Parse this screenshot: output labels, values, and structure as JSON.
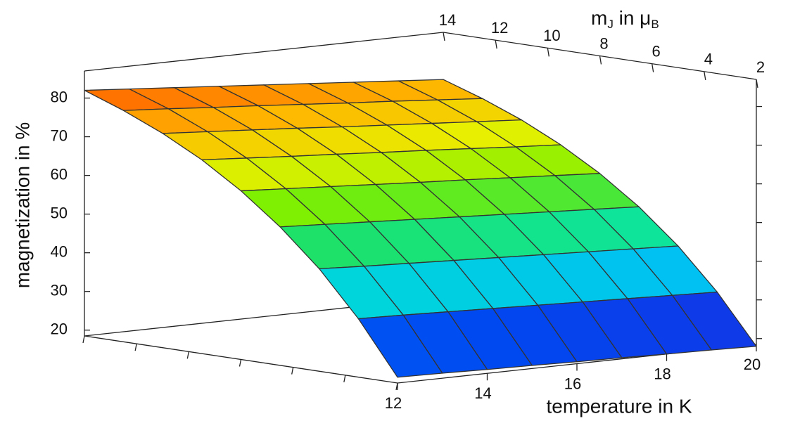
{
  "chart_data": {
    "type": "surface",
    "x_label": "temperature in K",
    "z_label": "magnetization in %",
    "y_label_parts": [
      "m",
      "J",
      " in μ",
      "B"
    ],
    "x": [
      12,
      13,
      14,
      15,
      16,
      17,
      18,
      19,
      20
    ],
    "y": [
      2,
      3.5,
      5,
      6.5,
      8,
      9.5,
      11,
      12.5,
      14
    ],
    "z": [
      [
        20,
        33.6,
        45.0,
        54.3,
        62.1,
        68.6,
        73.9,
        78.3,
        82
      ],
      [
        19.8,
        33.3,
        44.4,
        53.7,
        61.4,
        67.8,
        73.1,
        77.5,
        81.1
      ],
      [
        19.5,
        32.9,
        43.9,
        53.1,
        60.7,
        67.0,
        72.3,
        76.6,
        80.2
      ],
      [
        19.3,
        32.5,
        43.4,
        52.5,
        60.0,
        66.3,
        71.5,
        75.8,
        79.3
      ],
      [
        19,
        32.1,
        42.9,
        51.9,
        59.3,
        65.5,
        70.6,
        74.9,
        78.4
      ],
      [
        18.8,
        31.7,
        42.4,
        51.3,
        58.7,
        64.8,
        69.8,
        74.0,
        77.5
      ],
      [
        18.5,
        31.3,
        41.9,
        50.7,
        58.0,
        64.0,
        69.0,
        73.2,
        76.6
      ],
      [
        18.3,
        30.9,
        41.4,
        50.1,
        57.3,
        63.2,
        68.2,
        72.3,
        75.7
      ],
      [
        18,
        30.5,
        40.9,
        49.5,
        56.6,
        62.5,
        67.4,
        71.4,
        74.8
      ]
    ],
    "xlim": [
      12,
      20
    ],
    "xticks": [
      12,
      14,
      16,
      18,
      20
    ],
    "ylim": [
      2,
      14
    ],
    "yticks": [
      14,
      12,
      10,
      8,
      6,
      4,
      2
    ],
    "zlim": [
      18.5,
      87
    ],
    "zticks": [
      20,
      30,
      40,
      50,
      60,
      70,
      80
    ],
    "colormap": [
      "#4a00c8",
      "#0048f0",
      "#00b4ff",
      "#00e8c8",
      "#20e060",
      "#80f000",
      "#e8f000",
      "#ffb400",
      "#ff5a00"
    ],
    "grid_color": "#333333"
  }
}
